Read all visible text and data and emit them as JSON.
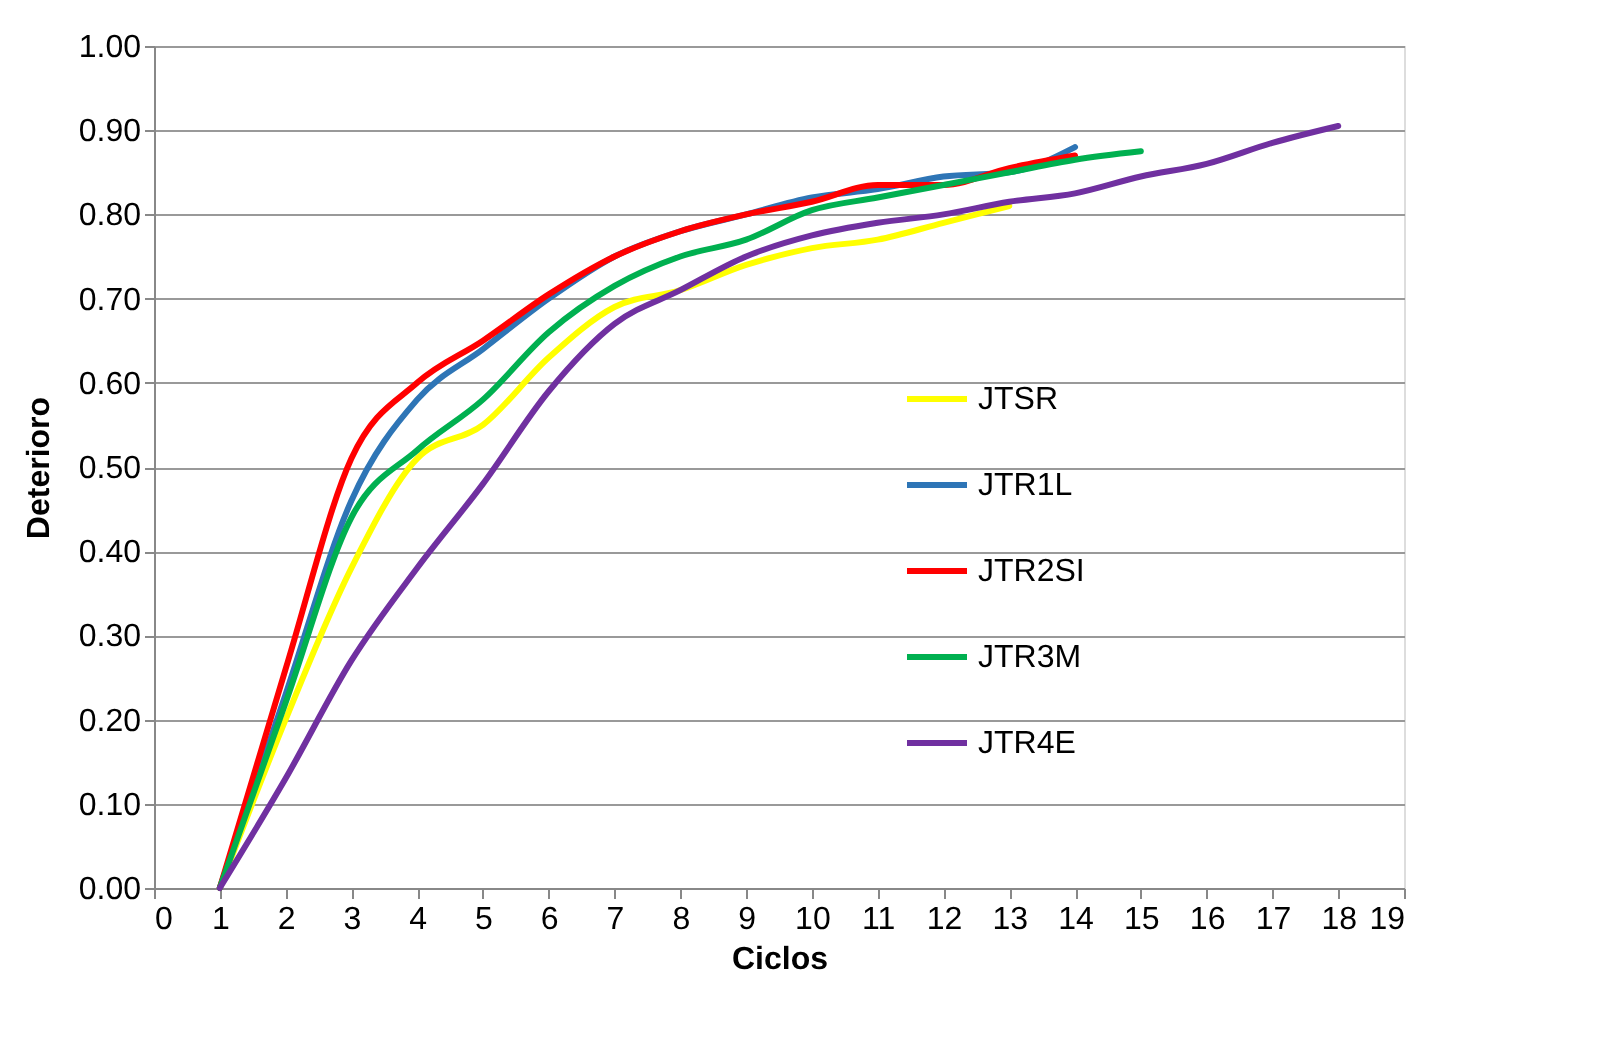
{
  "chart_data": {
    "type": "line",
    "xlabel": "Ciclos",
    "ylabel": "Deterioro",
    "xlim": [
      0,
      19
    ],
    "xticks": [
      0,
      1,
      2,
      3,
      4,
      5,
      6,
      7,
      8,
      9,
      10,
      11,
      12,
      13,
      14,
      15,
      16,
      17,
      18,
      19
    ],
    "ylim": [
      0,
      1
    ],
    "yticks": [
      {
        "value": 0,
        "label": "0.00"
      },
      {
        "value": 0.1,
        "label": "0.10"
      },
      {
        "value": 0.2,
        "label": "0.20"
      },
      {
        "value": 0.3,
        "label": "0.30"
      },
      {
        "value": 0.4,
        "label": "0.40"
      },
      {
        "value": 0.5,
        "label": "0.50"
      },
      {
        "value": 0.6,
        "label": "0.60"
      },
      {
        "value": 0.7,
        "label": "0.70"
      },
      {
        "value": 0.8,
        "label": "0.80"
      },
      {
        "value": 0.9,
        "label": "0.90"
      },
      {
        "value": 1,
        "label": "1.00"
      }
    ],
    "grid": "y",
    "legend": "right",
    "marker": "none",
    "line_style": "solid",
    "series": [
      {
        "name": "JTSR",
        "color": "#ffff00",
        "x": [
          1,
          2,
          3,
          4,
          5,
          6,
          7,
          8,
          9,
          10,
          11,
          12,
          13
        ],
        "values": [
          0,
          0.2,
          0.38,
          0.51,
          0.55,
          0.63,
          0.69,
          0.71,
          0.74,
          0.76,
          0.77,
          0.79,
          0.81
        ]
      },
      {
        "name": "JTR1L",
        "color": "#2e75b6",
        "x": [
          1,
          2,
          3,
          4,
          5,
          6,
          7,
          8,
          9,
          10,
          11,
          12,
          13,
          14
        ],
        "values": [
          0,
          0.23,
          0.46,
          0.58,
          0.64,
          0.7,
          0.75,
          0.78,
          0.8,
          0.82,
          0.83,
          0.845,
          0.85,
          0.88
        ]
      },
      {
        "name": "JTR2SI",
        "color": "#ff0000",
        "x": [
          1,
          2,
          3,
          4,
          5,
          6,
          7,
          8,
          9,
          10,
          11,
          12,
          13,
          14
        ],
        "values": [
          0,
          0.26,
          0.51,
          0.6,
          0.65,
          0.705,
          0.75,
          0.78,
          0.8,
          0.815,
          0.835,
          0.835,
          0.855,
          0.87
        ]
      },
      {
        "name": "JTR3M",
        "color": "#00b050",
        "x": [
          1,
          2,
          3,
          4,
          5,
          6,
          7,
          8,
          9,
          10,
          11,
          12,
          13,
          14,
          15
        ],
        "values": [
          0,
          0.22,
          0.44,
          0.52,
          0.58,
          0.66,
          0.715,
          0.75,
          0.77,
          0.805,
          0.82,
          0.835,
          0.85,
          0.865,
          0.875
        ]
      },
      {
        "name": "JTR4E",
        "color": "#7030a0",
        "x": [
          1,
          2,
          3,
          4,
          5,
          6,
          7,
          8,
          9,
          10,
          11,
          12,
          13,
          14,
          15,
          16,
          17,
          18
        ],
        "values": [
          0,
          0.13,
          0.27,
          0.38,
          0.48,
          0.59,
          0.67,
          0.71,
          0.75,
          0.775,
          0.79,
          0.8,
          0.815,
          0.825,
          0.845,
          0.86,
          0.885,
          0.905
        ]
      }
    ]
  }
}
